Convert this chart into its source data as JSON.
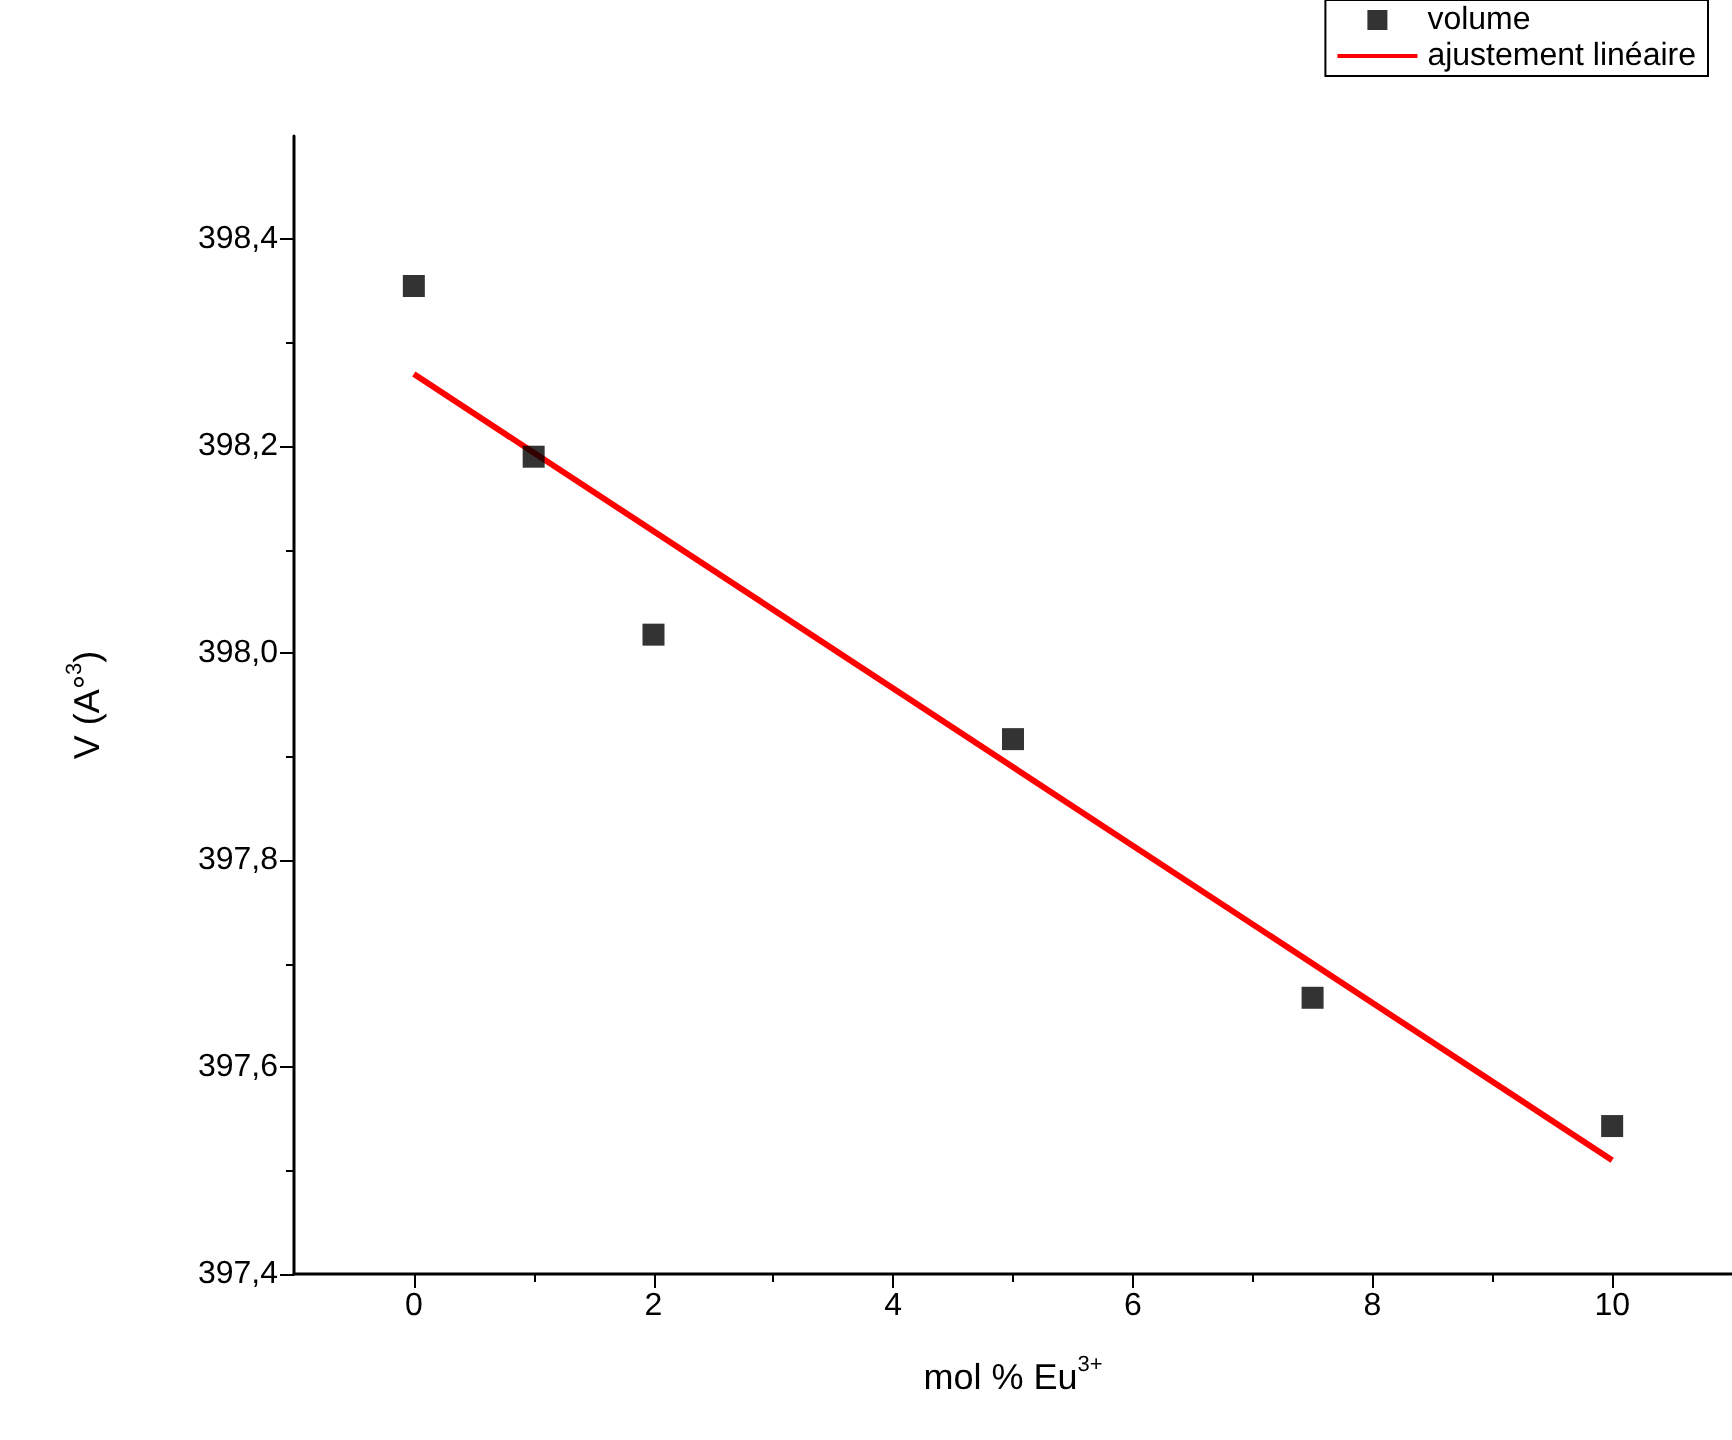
{
  "chart_data": {
    "type": "scatter",
    "xlabel": "mol % Eu$^{3+}$",
    "ylabel": "V (A°$^{3}$)",
    "xlim": [
      -1,
      11
    ],
    "xticks": [
      0,
      2,
      4,
      6,
      8,
      10
    ],
    "ylim": [
      397.4,
      398.5
    ],
    "yticks": [
      {
        "value": 397.4,
        "label": "397,4"
      },
      {
        "value": 397.6,
        "label": "397,6"
      },
      {
        "value": 397.8,
        "label": "397,8"
      },
      {
        "value": 398.0,
        "label": "398,0"
      },
      {
        "value": 398.2,
        "label": "398,2"
      },
      {
        "value": 398.4,
        "label": "398,4"
      }
    ],
    "legend": "top right",
    "grid": false,
    "series": [
      {
        "name": "volume",
        "marker": "square",
        "color": "#000000",
        "x": [
          0,
          1,
          2,
          5,
          7.5,
          10
        ],
        "values": [
          398.355,
          398.19,
          398.018,
          397.917,
          397.667,
          397.543
        ]
      },
      {
        "name": "ajustement linéaire",
        "type": "line",
        "marker": "none",
        "color": "#ff0000",
        "x": [
          0,
          10
        ],
        "values": [
          398.27,
          397.51
        ]
      }
    ]
  }
}
